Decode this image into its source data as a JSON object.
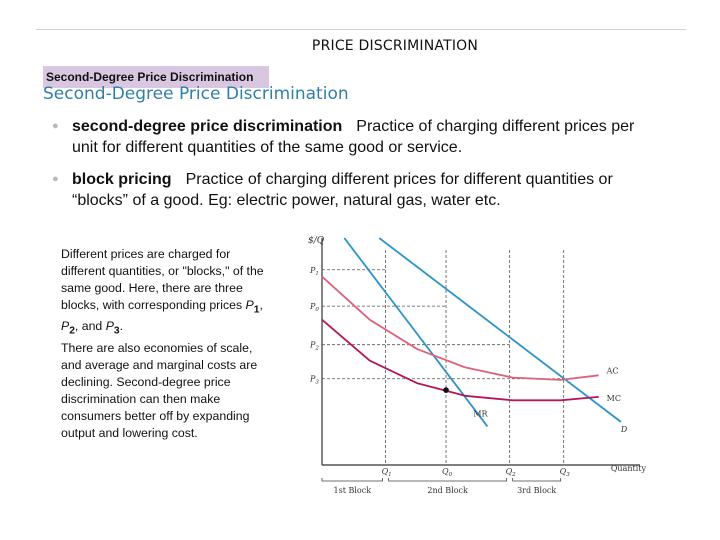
{
  "slide": {
    "title": "PRICE DISCRIMINATION",
    "label_box": "Second-Degree Price Discrimination",
    "section_heading": "Second-Degree Price Discrimination"
  },
  "bullets": [
    {
      "term": "second-degree price discrimination",
      "text": "Practice of charging different prices per unit for different quantities of the same good or service."
    },
    {
      "term": "block pricing",
      "text": "Practice of charging different prices for different quantities or “blocks” of a good. Eg: electric power, natural gas, water etc."
    }
  ],
  "side_text": {
    "p1a": "Different prices are charged for different quantities, or \"blocks,\" of the same good.  Here, there are three blocks, with corresponding prices ",
    "p1_P": "P",
    "sub1": "1",
    "sep1": ", ",
    "p2_P": "P",
    "sub2": "2",
    "sep2": ", and ",
    "p3_P": "P",
    "sub3": "3",
    "end": ".",
    "p2": "There are also economies of scale, and average and marginal costs are declining.  Second-degree price discrimination can then make consumers better off by expanding output and lowering cost."
  },
  "chart_data": {
    "type": "line",
    "title": "",
    "ylabel": "$/Q",
    "xlabel": "Quantity",
    "xlim": [
      0,
      10
    ],
    "ylim": [
      0,
      10
    ],
    "y_ticks": [
      {
        "label": "P1",
        "value": 8.6
      },
      {
        "label": "P0",
        "value": 7.0
      },
      {
        "label": "P2",
        "value": 5.3
      },
      {
        "label": "P3",
        "value": 3.8
      }
    ],
    "x_ticks": [
      {
        "label": "Q1",
        "value": 2.0
      },
      {
        "label": "Q0",
        "value": 3.9
      },
      {
        "label": "Q2",
        "value": 5.9
      },
      {
        "label": "Q3",
        "value": 7.6
      }
    ],
    "blocks": [
      {
        "label": "1st Block",
        "from": 0,
        "to": 2.0
      },
      {
        "label": "2nd Block",
        "from": 2.0,
        "to": 5.9
      },
      {
        "label": "3rd Block",
        "from": 5.9,
        "to": 7.6
      }
    ],
    "series": [
      {
        "name": "D",
        "color": "#2a93c7",
        "x": [
          1.8,
          9.4
        ],
        "y": [
          10.0,
          1.9
        ]
      },
      {
        "name": "MR",
        "color": "#2a93c7",
        "x": [
          0.7,
          5.2
        ],
        "y": [
          10.0,
          1.7
        ]
      },
      {
        "name": "AC",
        "color": "#e06078",
        "x": [
          0.0,
          1.5,
          3.0,
          4.5,
          6.0,
          7.5,
          8.7
        ],
        "y": [
          8.3,
          6.4,
          5.1,
          4.3,
          3.85,
          3.75,
          3.95
        ]
      },
      {
        "name": "MC",
        "color": "#b2185a",
        "x": [
          0.0,
          1.5,
          3.0,
          4.5,
          6.0,
          7.5,
          8.7
        ],
        "y": [
          6.4,
          4.6,
          3.6,
          3.05,
          2.85,
          2.85,
          3.0
        ]
      }
    ],
    "marked_point": {
      "x": 3.9,
      "y": 3.3
    },
    "colors": {
      "axis": "#333333",
      "guide": "#555555"
    }
  }
}
